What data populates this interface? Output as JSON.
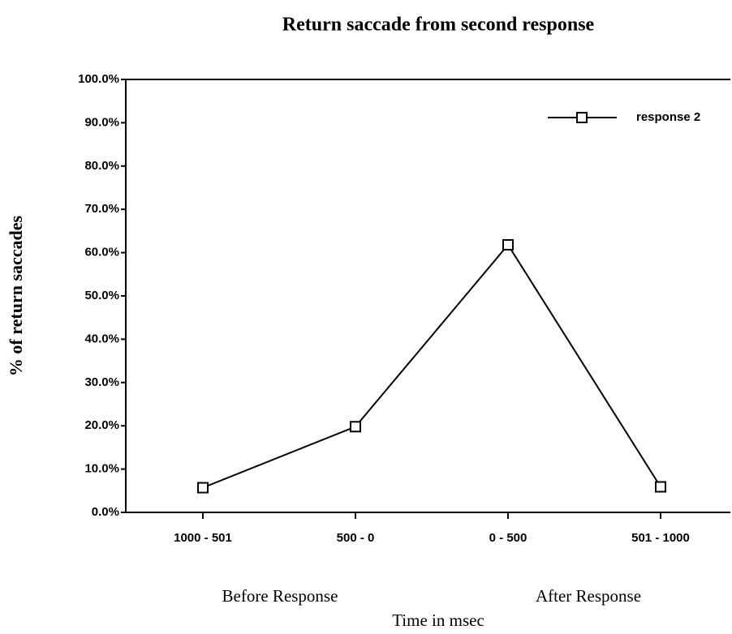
{
  "chart_data": {
    "type": "line",
    "title": "Return saccade from second response",
    "y_label": "% of return saccades",
    "x_label": "Time in msec",
    "annotations": [
      "Before Response",
      "After Response"
    ],
    "categories": [
      "1000 - 501",
      "500 - 0",
      "0 - 500",
      "501 - 1000"
    ],
    "series": [
      {
        "name": "response 2",
        "color": "#000000",
        "values": [
          5.7,
          19.8,
          61.8,
          5.9
        ]
      }
    ],
    "ylim": [
      0,
      100
    ],
    "yticks": [
      {
        "value": 0,
        "label": "0.0%"
      },
      {
        "value": 10,
        "label": "10.0%"
      },
      {
        "value": 20,
        "label": "20.0%"
      },
      {
        "value": 30,
        "label": "30.0%"
      },
      {
        "value": 40,
        "label": "40.0%"
      },
      {
        "value": 50,
        "label": "50.0%"
      },
      {
        "value": 60,
        "label": "60.0%"
      },
      {
        "value": 70,
        "label": "70.0%"
      },
      {
        "value": 80,
        "label": "80.0%"
      },
      {
        "value": 90,
        "label": "90.0%"
      },
      {
        "value": 100,
        "label": "100.0%"
      }
    ],
    "grid": false,
    "legend": "upper right"
  }
}
